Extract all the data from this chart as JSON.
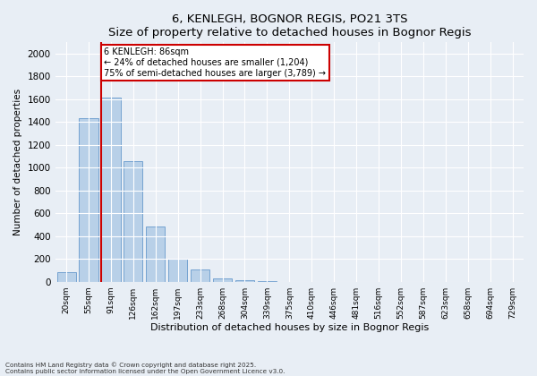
{
  "title": "6, KENLEGH, BOGNOR REGIS, PO21 3TS",
  "subtitle": "Size of property relative to detached houses in Bognor Regis",
  "xlabel": "Distribution of detached houses by size in Bognor Regis",
  "ylabel": "Number of detached properties",
  "categories": [
    "20sqm",
    "55sqm",
    "91sqm",
    "126sqm",
    "162sqm",
    "197sqm",
    "233sqm",
    "268sqm",
    "304sqm",
    "339sqm",
    "375sqm",
    "410sqm",
    "446sqm",
    "481sqm",
    "516sqm",
    "552sqm",
    "587sqm",
    "623sqm",
    "658sqm",
    "694sqm",
    "729sqm"
  ],
  "values": [
    80,
    1430,
    1610,
    1060,
    480,
    200,
    110,
    25,
    15,
    5,
    0,
    0,
    0,
    0,
    0,
    0,
    0,
    0,
    0,
    0,
    0
  ],
  "bar_color": "#b8d0e8",
  "bar_edge_color": "#6699cc",
  "vline_color": "#cc0000",
  "vline_x_pos": 1.575,
  "annotation_text": "6 KENLEGH: 86sqm\n← 24% of detached houses are smaller (1,204)\n75% of semi-detached houses are larger (3,789) →",
  "annotation_box_edgecolor": "#cc0000",
  "ylim": [
    0,
    2100
  ],
  "yticks": [
    0,
    200,
    400,
    600,
    800,
    1000,
    1200,
    1400,
    1600,
    1800,
    2000
  ],
  "footer1": "Contains HM Land Registry data © Crown copyright and database right 2025.",
  "footer2": "Contains public sector information licensed under the Open Government Licence v3.0.",
  "bg_color": "#e8eef5"
}
